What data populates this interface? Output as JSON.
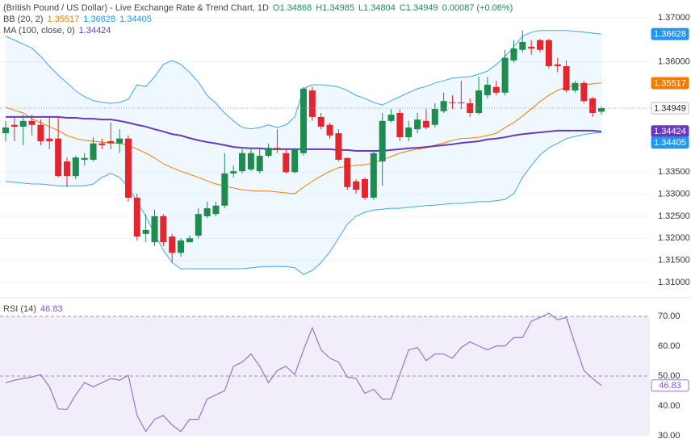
{
  "chart_data": [
    {
      "type": "candlestick",
      "title": "(British Pound / US Dollar) - Live Exchange Rate & Trend Chart, 1D",
      "ohlc_text": [
        "O1.34868",
        "H1.34985",
        "L1.34804",
        "C1.34949",
        "0.00087 (+0.06%)"
      ],
      "indicators": [
        {
          "label": "BB (20, 2)",
          "values": [
            {
              "text": "1.35517",
              "color": "#f57c00"
            },
            {
              "text": "1.36628",
              "color": "#2196f3"
            },
            {
              "text": "1.34405",
              "color": "#2196f3"
            }
          ]
        },
        {
          "label": "MA (100, close, 0)",
          "values": [
            {
              "text": "1.34424",
              "color": "#673ab7"
            }
          ]
        }
      ],
      "open": [
        1.3438,
        1.3457,
        1.3453,
        1.3466,
        1.3457,
        1.3426,
        1.3426,
        1.3374,
        1.3341,
        1.3378,
        1.3378,
        1.3415,
        1.342,
        1.3415,
        1.3426,
        1.3292,
        1.321,
        1.3191,
        1.325,
        1.3204,
        1.3167,
        1.3191,
        1.3206,
        1.325,
        1.3255,
        1.3274,
        1.3347,
        1.3352,
        1.3356,
        1.3352,
        1.3387,
        1.3405,
        1.3393,
        1.335,
        1.3393,
        1.3535,
        1.3475,
        1.3457,
        1.3438,
        1.3382,
        1.3329,
        1.3334,
        1.3292,
        1.3374,
        1.3466,
        1.3484,
        1.3429,
        1.3447,
        1.3466,
        1.3457,
        1.3488,
        1.3508,
        1.3508,
        1.3506,
        1.3484,
        1.3524,
        1.3543,
        1.353,
        1.3603,
        1.3627,
        1.3634,
        1.3649,
        1.3649,
        1.3594,
        1.359,
        1.3535,
        1.3552,
        1.3517,
        1.34868
      ],
      "high": [
        1.3466,
        1.3475,
        1.348,
        1.348,
        1.3469,
        1.3475,
        1.3475,
        1.3383,
        1.3387,
        1.3393,
        1.3429,
        1.3426,
        1.3462,
        1.3447,
        1.3433,
        1.3301,
        1.3255,
        1.3265,
        1.3255,
        1.321,
        1.32,
        1.3206,
        1.3268,
        1.3283,
        1.3283,
        1.3393,
        1.3365,
        1.3402,
        1.3405,
        1.3402,
        1.3415,
        1.3447,
        1.3402,
        1.3405,
        1.3543,
        1.3543,
        1.3484,
        1.3462,
        1.3447,
        1.3383,
        1.3334,
        1.3338,
        1.3396,
        1.3484,
        1.3493,
        1.3493,
        1.3466,
        1.3484,
        1.3493,
        1.3506,
        1.353,
        1.3524,
        1.3557,
        1.3517,
        1.3566,
        1.3566,
        1.3557,
        1.3627,
        1.3649,
        1.3671,
        1.3649,
        1.3652,
        1.3652,
        1.3609,
        1.3603,
        1.3557,
        1.3557,
        1.3521,
        1.34985
      ],
      "low": [
        1.342,
        1.342,
        1.3411,
        1.3433,
        1.3411,
        1.3402,
        1.3338,
        1.3316,
        1.3334,
        1.3365,
        1.3374,
        1.3402,
        1.3402,
        1.3393,
        1.3283,
        1.3195,
        1.3191,
        1.3182,
        1.3182,
        1.3145,
        1.3158,
        1.3191,
        1.32,
        1.3246,
        1.325,
        1.3268,
        1.3338,
        1.3347,
        1.3352,
        1.3347,
        1.3383,
        1.3393,
        1.3347,
        1.3347,
        1.3387,
        1.3466,
        1.3447,
        1.3426,
        1.3374,
        1.331,
        1.3301,
        1.3287,
        1.3287,
        1.3319,
        1.3462,
        1.342,
        1.342,
        1.3438,
        1.3447,
        1.3451,
        1.3484,
        1.3493,
        1.3493,
        1.3475,
        1.348,
        1.3517,
        1.3524,
        1.3524,
        1.3598,
        1.3621,
        1.3616,
        1.3621,
        1.3585,
        1.3576,
        1.353,
        1.353,
        1.3506,
        1.3475,
        1.34804
      ],
      "close": [
        1.3451,
        1.3453,
        1.3466,
        1.3457,
        1.342,
        1.342,
        1.3341,
        1.3341,
        1.3383,
        1.3382,
        1.3415,
        1.3411,
        1.3415,
        1.3426,
        1.3292,
        1.3204,
        1.3219,
        1.325,
        1.3191,
        1.3167,
        1.3195,
        1.32,
        1.3255,
        1.3268,
        1.3274,
        1.3347,
        1.3352,
        1.3393,
        1.3393,
        1.3387,
        1.3405,
        1.3402,
        1.335,
        1.3402,
        1.3539,
        1.3475,
        1.3453,
        1.3433,
        1.3378,
        1.3316,
        1.331,
        1.3292,
        1.3393,
        1.3466,
        1.348,
        1.3429,
        1.3451,
        1.3469,
        1.3451,
        1.3493,
        1.3511,
        1.3506,
        1.3506,
        1.3484,
        1.3535,
        1.3548,
        1.353,
        1.3609,
        1.363,
        1.3645,
        1.363,
        1.3627,
        1.359,
        1.359,
        1.3535,
        1.3552,
        1.3511,
        1.3484,
        1.34949
      ],
      "up_color": "#1e8b4f",
      "down_color": "#e3262e",
      "overlays": [
        {
          "color": "#42a5f5",
          "values": [
            1.3658,
            1.3649,
            1.364,
            1.3631,
            1.3612,
            1.359,
            1.357,
            1.3552,
            1.3534,
            1.3521,
            1.3512,
            1.3508,
            1.3506,
            1.3508,
            1.3515,
            1.3548,
            1.3544,
            1.3566,
            1.3594,
            1.3603,
            1.3594,
            1.3576,
            1.3554,
            1.3524,
            1.3506,
            1.3484,
            1.3466,
            1.3451,
            1.3448,
            1.3451,
            1.3457,
            1.3451,
            1.3457,
            1.3475,
            1.3539,
            1.3548,
            1.3548,
            1.3546,
            1.3543,
            1.3535,
            1.3524,
            1.3517,
            1.3508,
            1.3502,
            1.3512,
            1.3521,
            1.353,
            1.3539,
            1.3544,
            1.3552,
            1.3557,
            1.3563,
            1.3565,
            1.3566,
            1.3572,
            1.3579,
            1.3594,
            1.3612,
            1.3634,
            1.3658,
            1.3667,
            1.3671,
            1.3671,
            1.3671,
            1.3671,
            1.3669,
            1.3667,
            1.3665,
            1.3663
          ]
        },
        {
          "color": "#f57c00",
          "values": [
            1.3497,
            1.349,
            1.3484,
            1.3471,
            1.3462,
            1.3453,
            1.3444,
            1.3433,
            1.3426,
            1.3422,
            1.342,
            1.3418,
            1.3416,
            1.3415,
            1.3411,
            1.3402,
            1.3393,
            1.3382,
            1.3369,
            1.336,
            1.3352,
            1.3345,
            1.3338,
            1.333,
            1.3323,
            1.3318,
            1.3314,
            1.331,
            1.3308,
            1.3307,
            1.3307,
            1.3305,
            1.3303,
            1.3301,
            1.3316,
            1.3329,
            1.3341,
            1.3352,
            1.336,
            1.3363,
            1.3365,
            1.3367,
            1.3371,
            1.3378,
            1.3385,
            1.3393,
            1.3398,
            1.3402,
            1.3405,
            1.3411,
            1.3416,
            1.3422,
            1.3426,
            1.3427,
            1.3429,
            1.3433,
            1.3438,
            1.3451,
            1.3462,
            1.3477,
            1.3493,
            1.351,
            1.3524,
            1.3535,
            1.3543,
            1.3546,
            1.3548,
            1.355,
            1.3552
          ]
        },
        {
          "color": "#42a5f5",
          "values": [
            1.3329,
            1.3327,
            1.3325,
            1.3323,
            1.3323,
            1.3321,
            1.3319,
            1.3319,
            1.3319,
            1.3319,
            1.3323,
            1.3338,
            1.3347,
            1.3338,
            1.3316,
            1.3283,
            1.325,
            1.321,
            1.3173,
            1.3145,
            1.3131,
            1.3131,
            1.3131,
            1.3131,
            1.3131,
            1.3131,
            1.3131,
            1.3131,
            1.3133,
            1.3135,
            1.3136,
            1.3136,
            1.3136,
            1.3133,
            1.3118,
            1.3127,
            1.3145,
            1.3169,
            1.32,
            1.3232,
            1.325,
            1.3259,
            1.3264,
            1.3266,
            1.3268,
            1.3268,
            1.327,
            1.3272,
            1.3274,
            1.3275,
            1.3277,
            1.3279,
            1.3279,
            1.3281,
            1.3283,
            1.3283,
            1.3285,
            1.3288,
            1.3301,
            1.3338,
            1.3365,
            1.3389,
            1.3405,
            1.3415,
            1.3426,
            1.3431,
            1.3435,
            1.3438,
            1.344
          ]
        },
        {
          "color": "#673ab7",
          "width": 2,
          "values": [
            1.3475,
            1.3475,
            1.3475,
            1.3475,
            1.3475,
            1.3475,
            1.3475,
            1.3473,
            1.3473,
            1.3471,
            1.3471,
            1.3469,
            1.3469,
            1.3466,
            1.3462,
            1.3457,
            1.3453,
            1.3447,
            1.3442,
            1.3436,
            1.3433,
            1.3427,
            1.3422,
            1.3418,
            1.3415,
            1.3411,
            1.3407,
            1.3405,
            1.3404,
            1.3404,
            1.3402,
            1.3402,
            1.3402,
            1.3402,
            1.3402,
            1.3402,
            1.3402,
            1.3402,
            1.34,
            1.34,
            1.3398,
            1.3398,
            1.3398,
            1.3398,
            1.34,
            1.3402,
            1.3404,
            1.3405,
            1.3407,
            1.3409,
            1.3411,
            1.3413,
            1.3416,
            1.3418,
            1.342,
            1.3424,
            1.3426,
            1.3429,
            1.3433,
            1.3436,
            1.3438,
            1.344,
            1.3442,
            1.3444,
            1.3444,
            1.3444,
            1.3444,
            1.3444,
            1.3442
          ]
        }
      ],
      "band_fill": "rgba(33,150,243,0.07)",
      "ylim": [
        1.3067,
        1.374
      ],
      "yticks": [
        {
          "value": 1.37,
          "label": "1.37000"
        },
        {
          "value": 1.36,
          "label": "1.36000"
        },
        {
          "value": 1.335,
          "label": "1.33500"
        },
        {
          "value": 1.33,
          "label": "1.33000"
        },
        {
          "value": 1.325,
          "label": "1.32500"
        },
        {
          "value": 1.32,
          "label": "1.32000"
        },
        {
          "value": 1.315,
          "label": "1.31500"
        },
        {
          "value": 1.31,
          "label": "1.31000"
        }
      ],
      "grid": true,
      "price_labels": [
        {
          "value": 1.36628,
          "color": "#2196f3",
          "text_color": "#ffffff"
        },
        {
          "value": 1.35517,
          "color": "#f57c00",
          "text_color": "#ffffff"
        },
        {
          "value": 1.34949,
          "color": "#ffffff",
          "text_color": "#222222",
          "border": "#bbbbbb",
          "dotted_line": true
        },
        {
          "value": 1.34424,
          "color": "#673ab7",
          "text_color": "#ffffff"
        },
        {
          "value": 1.34405,
          "color": "#2196f3",
          "text_color": "#ffffff"
        }
      ]
    },
    {
      "type": "line",
      "title": "RSI (14)",
      "value_text": "46.83",
      "color": "#9575cd",
      "values": [
        47.8,
        48.6,
        49.2,
        49.7,
        50.5,
        46.4,
        39.0,
        38.8,
        43.7,
        47.8,
        46.4,
        47.8,
        49.2,
        48.6,
        50.3,
        36.8,
        31.4,
        35.5,
        36.8,
        33.6,
        31.4,
        35.5,
        35.5,
        42.3,
        43.7,
        45.1,
        53.3,
        54.7,
        57.4,
        53.3,
        47.8,
        51.9,
        53.3,
        50.5,
        58.8,
        66.2,
        58.8,
        56.0,
        54.7,
        49.7,
        49.2,
        44.2,
        45.6,
        42.3,
        42.3,
        50.5,
        58.8,
        59.6,
        55.2,
        57.4,
        57.4,
        56.0,
        59.6,
        61.5,
        60.1,
        58.8,
        60.1,
        60.1,
        62.9,
        62.9,
        68.4,
        69.7,
        71.1,
        68.9,
        69.7,
        60.7,
        51.9,
        49.2,
        46.83
      ],
      "ylim": [
        28.9,
        76
      ],
      "yticks": [
        {
          "value": 70,
          "label": "70.00"
        },
        {
          "value": 60,
          "label": "60.00"
        },
        {
          "value": 50,
          "label": "50.00"
        },
        {
          "value": 40,
          "label": "40.00"
        },
        {
          "value": 30,
          "label": "30.00"
        }
      ],
      "levels": [
        70,
        50
      ],
      "band": [
        30,
        70
      ],
      "band_fill": "rgba(149,117,205,0.12)",
      "price_labels": [
        {
          "value": 46.83,
          "color": "#ffffff",
          "text_color": "#7e57c2",
          "border": "#9575cd"
        }
      ]
    }
  ]
}
